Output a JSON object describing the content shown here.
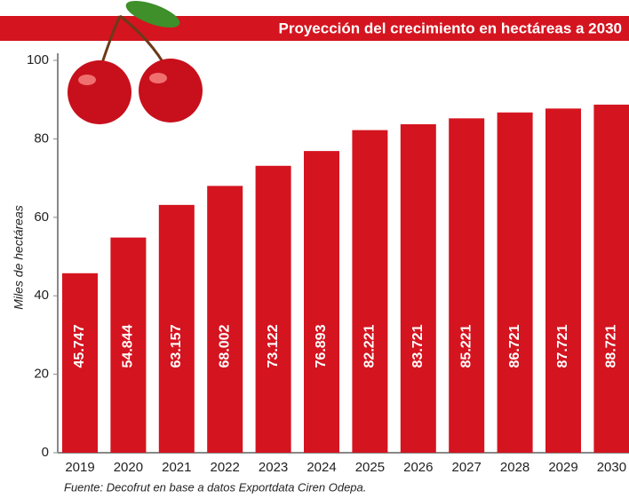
{
  "chart_data": {
    "type": "bar",
    "title": "Proyección del crecimiento en hectáreas a 2030",
    "y_label": "Miles de hectáreas",
    "source": "Fuente: Decofrut en base a datos Exportdata Ciren Odepa.",
    "categories": [
      "2019",
      "2020",
      "2021",
      "2022",
      "2023",
      "2024",
      "2025",
      "2026",
      "2027",
      "2028",
      "2029",
      "2030"
    ],
    "values": [
      45.747,
      54.844,
      63.157,
      68.002,
      73.122,
      76.893,
      82.221,
      83.721,
      85.221,
      86.721,
      87.721,
      88.721
    ],
    "color": "#d4141f",
    "ylim": [
      0,
      100
    ],
    "yticks": [
      0,
      20,
      40,
      60,
      80,
      100
    ]
  }
}
